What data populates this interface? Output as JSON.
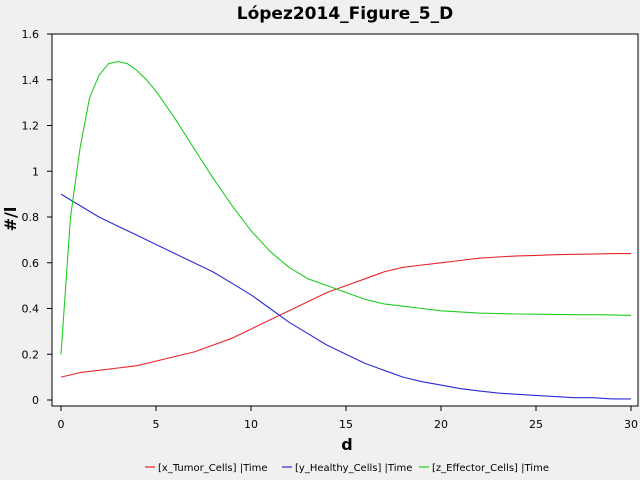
{
  "chart_data": {
    "type": "line",
    "title": "López2014_Figure_5_D",
    "xlabel": "d",
    "ylabel": "#/l",
    "xlim": [
      0,
      30
    ],
    "ylim": [
      0,
      1.6
    ],
    "x_ticks": [
      "0",
      "5",
      "10",
      "15",
      "20",
      "25",
      "30"
    ],
    "y_ticks": [
      "0",
      "0.2",
      "0.4",
      "0.6",
      "0.8",
      "1",
      "1.2",
      "1.4",
      "1.6"
    ],
    "grid": false,
    "legend_position": "bottom",
    "series": [
      {
        "name": "[x_Tumor_Cells] |Time",
        "color": "#e8262b",
        "x": [
          0,
          1,
          2,
          3,
          4,
          5,
          6,
          7,
          8,
          9,
          10,
          11,
          12,
          13,
          14,
          15,
          16,
          17,
          18,
          19,
          20,
          21,
          22,
          23,
          24,
          25,
          26,
          27,
          28,
          29,
          30
        ],
        "y": [
          0.1,
          0.12,
          0.13,
          0.14,
          0.15,
          0.17,
          0.19,
          0.21,
          0.24,
          0.27,
          0.31,
          0.35,
          0.39,
          0.43,
          0.47,
          0.5,
          0.53,
          0.56,
          0.58,
          0.59,
          0.6,
          0.61,
          0.62,
          0.625,
          0.63,
          0.632,
          0.635,
          0.637,
          0.638,
          0.64,
          0.64
        ]
      },
      {
        "name": "[y_Healthy_Cells] |Time",
        "color": "#2a2ad6",
        "x": [
          0,
          1,
          2,
          3,
          4,
          5,
          6,
          7,
          8,
          9,
          10,
          11,
          12,
          13,
          14,
          15,
          16,
          17,
          18,
          19,
          20,
          21,
          22,
          23,
          24,
          25,
          26,
          27,
          28,
          29,
          30
        ],
        "y": [
          0.9,
          0.85,
          0.8,
          0.76,
          0.72,
          0.68,
          0.64,
          0.6,
          0.56,
          0.51,
          0.46,
          0.4,
          0.34,
          0.29,
          0.24,
          0.2,
          0.16,
          0.13,
          0.1,
          0.08,
          0.065,
          0.05,
          0.04,
          0.03,
          0.025,
          0.02,
          0.015,
          0.01,
          0.01,
          0.005,
          0.005
        ]
      },
      {
        "name": "[z_Effector_Cells] |Time",
        "color": "#22cc22",
        "x": [
          0,
          0.5,
          1,
          1.5,
          2,
          2.5,
          3,
          3.5,
          4,
          4.5,
          5,
          6,
          7,
          8,
          9,
          10,
          11,
          12,
          13,
          14,
          15,
          16,
          17,
          18,
          19,
          20,
          21,
          22,
          23,
          24,
          25,
          26,
          27,
          28,
          29,
          30
        ],
        "y": [
          0.2,
          0.8,
          1.1,
          1.32,
          1.42,
          1.47,
          1.48,
          1.47,
          1.44,
          1.4,
          1.35,
          1.23,
          1.1,
          0.97,
          0.85,
          0.74,
          0.65,
          0.58,
          0.53,
          0.5,
          0.47,
          0.44,
          0.42,
          0.41,
          0.4,
          0.39,
          0.385,
          0.38,
          0.378,
          0.376,
          0.375,
          0.374,
          0.373,
          0.373,
          0.372,
          0.37
        ]
      }
    ]
  }
}
